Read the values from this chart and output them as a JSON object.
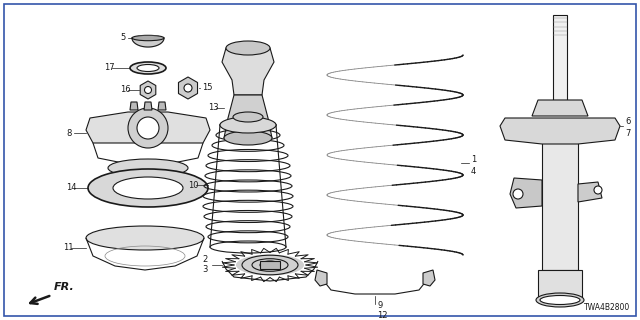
{
  "background_color": "#ffffff",
  "border_color": "#3355aa",
  "diagram_code": "TWA4B2800",
  "lw": 0.8,
  "dark": "#1a1a1a",
  "gray": "#888888"
}
